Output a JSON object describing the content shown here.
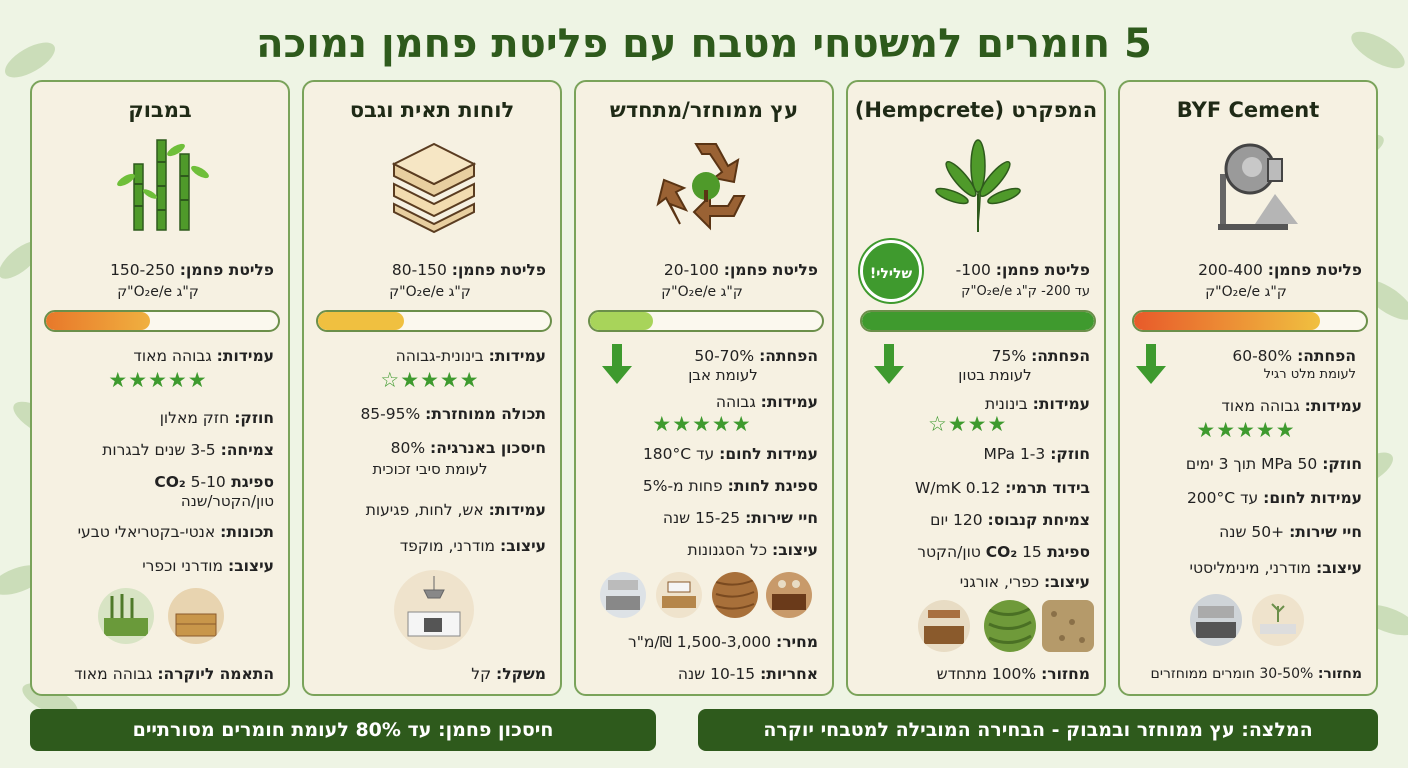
{
  "title": "5 חומרים למשטחי מטבח עם פליטת פחמן נמוכה",
  "cards": [
    {
      "title": "BYF Cement",
      "icon": "cement-mixer-icon",
      "carbon_label": "פליטת פחמן:",
      "carbon_value": "200-400",
      "carbon_unit": "ק\"ג O₂e/e\"ק",
      "carbon_bar_level": 0.8,
      "reduction_label": "הפחתה:",
      "reduction_value": "60-80%",
      "reduction_note": "לעומת מלט רגיל",
      "durability_label": "עמידות:",
      "durability_value": "גבוהה מאוד",
      "stars": "★★★★★",
      "strength_label": "חוזק:",
      "strength_value": "50 MPa תוך 3 ימים",
      "heat_label": "עמידות לחום:",
      "heat_value": "עד 200°C",
      "life_label": "חיי שירות:",
      "life_value": "+50 שנה",
      "design_label": "עיצוב:",
      "design_value": "מודרני, מינימליסטי",
      "bottom_label": "מחזור:",
      "bottom_value": "30-50% חומרים ממוחזרים"
    },
    {
      "title": "המפקרט (Hempcrete)",
      "icon": "hemp-leaf-icon",
      "carbon_label": "פליטת פחמן:",
      "carbon_value": "100-",
      "carbon_unit": "עד 200- ק\"ג O₂e/e\"ק",
      "badge": "שלילי!",
      "carbon_bar_level": 1.0,
      "reduction_label": "הפחתה:",
      "reduction_value": "75%",
      "reduction_note": "לעומת בטון",
      "durability_label": "עמידות:",
      "durability_value": "בינונית",
      "stars": "★★★☆",
      "strength_label": "חוזק:",
      "strength_value": "1-3 MPa",
      "insulation_label": "בידוד תרמי:",
      "insulation_value": "0.12 W/mK",
      "growth_label": "צמיחת קנבוס:",
      "growth_value": "120 יום",
      "co2_label": "ספיגת CO₂",
      "co2_value": "15 טון/הקטר",
      "design_label": "עיצוב:",
      "design_value": "כפרי, אורגני",
      "bottom_label": "מחזור:",
      "bottom_value": "100% מתחדש"
    },
    {
      "title": "עץ ממוחזר/מתחדש",
      "icon": "recycle-wood-icon",
      "carbon_label": "פליטת פחמן:",
      "carbon_value": "20-100",
      "carbon_unit": "ק\"ג O₂e/e\"ק",
      "carbon_bar_level": 0.27,
      "reduction_label": "הפחתה:",
      "reduction_value": "50-70%",
      "reduction_note": "לעומת אבן",
      "durability_label": "עמידות:",
      "durability_value": "גבוהה",
      "stars": "★★★★★",
      "heat_label": "עמידות לחום:",
      "heat_value": "עד 180°C",
      "absorb_label": "ספיגת לחות:",
      "absorb_value": "פחות מ-5%",
      "life_label": "חיי שירות:",
      "life_value": "15-25 שנה",
      "design_label": "עיצוב:",
      "design_value": "כל הסגנונות",
      "price_label": "מחיר:",
      "price_value": "1,500-3,000 ₪/מ\"ר",
      "warranty_label": "אחריות:",
      "warranty_value": "10-15 שנה"
    },
    {
      "title": "לוחות תאית וגבס",
      "icon": "panel-layers-icon",
      "carbon_label": "פליטת פחמן:",
      "carbon_value": "80-150",
      "carbon_unit": "ק\"ג O₂e/e\"ק",
      "carbon_bar_level": 0.37,
      "durability_label": "עמידות:",
      "durability_value": "בינונית-גבוהה",
      "stars": "★★★★☆",
      "recycled_label": "תכולה ממוחזרת:",
      "recycled_value": "85-95%",
      "energy_label": "חיסכון באנרגיה:",
      "energy_value": "80%",
      "energy_note": "לעומת סיבי זכוכית",
      "resist_label": "עמידות:",
      "resist_value": "אש, לחות, פגיעות",
      "design_label": "עיצוב:",
      "design_value": "מודרני, מוקפד",
      "weight_label": "משקל:",
      "weight_value": "קל"
    },
    {
      "title": "במבוק",
      "icon": "bamboo-icon",
      "carbon_label": "פליטת פחמן:",
      "carbon_value": "150-250",
      "carbon_unit": "ק\"ג O₂e/e\"ק",
      "carbon_bar_level": 0.45,
      "durability_label": "עמידות:",
      "durability_value": "גבוהה מאוד",
      "stars": "★★★★★",
      "strength_label": "חוזק:",
      "strength_value": "חזק מאלון",
      "growth_label": "צמיחה:",
      "growth_value": "3-5 שנים לבגרות",
      "co2_label": "ספיגת CO₂",
      "co2_value": "5-10",
      "co2_note": "טון/הקטר/שנה",
      "props_label": "תכונות:",
      "props_value": "אנטי-בקטריאלי טבעי",
      "design_label": "עיצוב:",
      "design_value": "מודרני וכפרי",
      "bottom_label": "התאמה ליוקרה:",
      "bottom_value": "גבוהה מאוד"
    }
  ],
  "footer_right": "המלצה: עץ ממוחזר ובמבוק - הבחירה המובילה למטבחי יוקרה",
  "footer_left": "חיסכון פחמן: עד 80% לעומת חומרים מסורתיים",
  "colors": {
    "dark_green": "#2e5a1c",
    "card_border": "#7aa35a",
    "star_green": "#3e9a2e"
  }
}
